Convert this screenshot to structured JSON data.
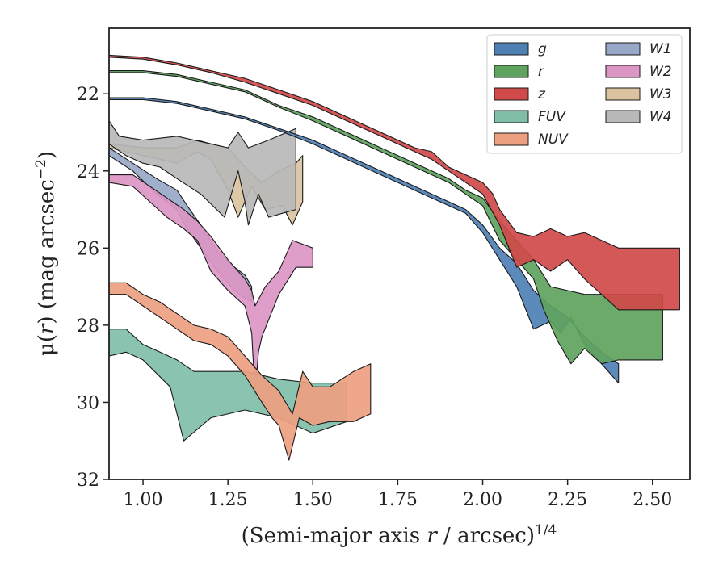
{
  "chart_data": {
    "type": "area",
    "xlabel_parts": [
      "(Semi-major axis ",
      "r",
      " / arcsec)",
      "1/4"
    ],
    "ylabel_parts": [
      "μ(",
      "r",
      ") (mag arcsec",
      "−2",
      ")"
    ],
    "xlim": [
      0.9,
      2.61
    ],
    "ylim": [
      32.0,
      20.3
    ],
    "y_inverted": true,
    "xticks": [
      1.0,
      1.25,
      1.5,
      1.75,
      2.0,
      2.25,
      2.5
    ],
    "xtick_labels": [
      "1.00",
      "1.25",
      "1.50",
      "1.75",
      "2.00",
      "2.25",
      "2.50"
    ],
    "yticks": [
      22,
      24,
      26,
      28,
      30,
      32
    ],
    "ytick_labels": [
      "22",
      "24",
      "26",
      "28",
      "30",
      "32"
    ],
    "legend": {
      "position": "top-right",
      "columns": 2,
      "order": [
        "g",
        "r",
        "z",
        "FUV",
        "NUV",
        "W1",
        "W2",
        "W3",
        "W4"
      ]
    },
    "series": [
      {
        "name": "W3",
        "color": "#dbc39f",
        "upper": [
          [
            0.9,
            23.3
          ],
          [
            1.0,
            23.4
          ],
          [
            1.1,
            23.4
          ],
          [
            1.16,
            23.2
          ],
          [
            1.2,
            23.3
          ],
          [
            1.25,
            23.4
          ],
          [
            1.3,
            23.9
          ],
          [
            1.35,
            24.3
          ],
          [
            1.4,
            24.0
          ],
          [
            1.45,
            23.8
          ],
          [
            1.47,
            23.6
          ]
        ],
        "lower": [
          [
            0.9,
            23.4
          ],
          [
            1.0,
            23.6
          ],
          [
            1.1,
            23.8
          ],
          [
            1.16,
            23.5
          ],
          [
            1.2,
            23.7
          ],
          [
            1.25,
            24.5
          ],
          [
            1.28,
            25.2
          ],
          [
            1.32,
            24.4
          ],
          [
            1.36,
            25.0
          ],
          [
            1.41,
            24.9
          ],
          [
            1.44,
            25.4
          ],
          [
            1.47,
            24.8
          ]
        ]
      },
      {
        "name": "W4",
        "color": "#b9b9b9",
        "upper": [
          [
            0.9,
            22.7
          ],
          [
            0.93,
            23.1
          ],
          [
            1.0,
            23.2
          ],
          [
            1.1,
            23.1
          ],
          [
            1.2,
            23.3
          ],
          [
            1.25,
            23.4
          ],
          [
            1.28,
            23.0
          ],
          [
            1.31,
            23.4
          ],
          [
            1.37,
            23.2
          ],
          [
            1.45,
            22.9
          ]
        ],
        "lower": [
          [
            0.9,
            23.3
          ],
          [
            0.95,
            23.6
          ],
          [
            1.0,
            23.8
          ],
          [
            1.05,
            23.9
          ],
          [
            1.1,
            24.2
          ],
          [
            1.17,
            24.6
          ],
          [
            1.24,
            25.2
          ],
          [
            1.28,
            24.0
          ],
          [
            1.3,
            24.8
          ],
          [
            1.31,
            25.4
          ],
          [
            1.34,
            24.6
          ],
          [
            1.37,
            25.2
          ],
          [
            1.41,
            25.1
          ],
          [
            1.45,
            25.0
          ]
        ]
      },
      {
        "name": "W1",
        "color": "#98a8c8",
        "upper": [
          [
            0.9,
            23.4
          ],
          [
            0.97,
            23.8
          ],
          [
            1.04,
            24.2
          ],
          [
            1.1,
            24.5
          ],
          [
            1.13,
            24.9
          ],
          [
            1.17,
            25.4
          ],
          [
            1.22,
            26.1
          ],
          [
            1.27,
            26.5
          ],
          [
            1.3,
            26.7
          ],
          [
            1.32,
            27.0
          ]
        ],
        "lower": [
          [
            0.9,
            23.6
          ],
          [
            0.97,
            24.0
          ],
          [
            1.04,
            24.6
          ],
          [
            1.1,
            25.0
          ],
          [
            1.13,
            25.5
          ],
          [
            1.17,
            26.0
          ],
          [
            1.22,
            26.6
          ],
          [
            1.27,
            27.1
          ],
          [
            1.3,
            27.3
          ],
          [
            1.32,
            27.4
          ]
        ]
      },
      {
        "name": "W2",
        "color": "#dc96c6",
        "upper": [
          [
            0.9,
            24.1
          ],
          [
            0.97,
            24.1
          ],
          [
            1.02,
            24.4
          ],
          [
            1.07,
            24.7
          ],
          [
            1.12,
            25.0
          ],
          [
            1.16,
            25.3
          ],
          [
            1.2,
            25.7
          ],
          [
            1.25,
            26.3
          ],
          [
            1.3,
            26.8
          ],
          [
            1.32,
            27.1
          ],
          [
            1.33,
            27.5
          ],
          [
            1.36,
            27.0
          ],
          [
            1.4,
            26.6
          ],
          [
            1.44,
            25.8
          ],
          [
            1.5,
            26.0
          ]
        ],
        "lower": [
          [
            0.9,
            24.3
          ],
          [
            0.97,
            24.4
          ],
          [
            1.02,
            24.8
          ],
          [
            1.07,
            25.2
          ],
          [
            1.12,
            25.5
          ],
          [
            1.16,
            25.8
          ],
          [
            1.2,
            26.6
          ],
          [
            1.25,
            27.1
          ],
          [
            1.3,
            27.5
          ],
          [
            1.32,
            28.2
          ],
          [
            1.33,
            29.8
          ],
          [
            1.34,
            28.7
          ],
          [
            1.35,
            28.3
          ],
          [
            1.4,
            27.2
          ],
          [
            1.45,
            26.5
          ],
          [
            1.5,
            26.5
          ]
        ]
      },
      {
        "name": "FUV",
        "color": "#80bea8",
        "upper": [
          [
            0.9,
            28.1
          ],
          [
            0.95,
            28.1
          ],
          [
            1.0,
            28.5
          ],
          [
            1.05,
            28.7
          ],
          [
            1.1,
            28.9
          ],
          [
            1.15,
            29.2
          ],
          [
            1.3,
            29.2
          ],
          [
            1.4,
            29.4
          ],
          [
            1.5,
            29.5
          ],
          [
            1.6,
            29.5
          ]
        ],
        "lower": [
          [
            0.9,
            28.8
          ],
          [
            0.95,
            28.7
          ],
          [
            1.0,
            28.9
          ],
          [
            1.08,
            29.6
          ],
          [
            1.12,
            31.0
          ],
          [
            1.2,
            30.4
          ],
          [
            1.3,
            30.2
          ],
          [
            1.4,
            30.4
          ],
          [
            1.5,
            30.8
          ],
          [
            1.6,
            30.5
          ]
        ]
      },
      {
        "name": "NUV",
        "color": "#eda080",
        "upper": [
          [
            0.9,
            26.9
          ],
          [
            0.95,
            26.9
          ],
          [
            1.0,
            27.2
          ],
          [
            1.05,
            27.4
          ],
          [
            1.1,
            27.7
          ],
          [
            1.15,
            28.0
          ],
          [
            1.2,
            28.1
          ],
          [
            1.25,
            28.3
          ],
          [
            1.3,
            28.8
          ],
          [
            1.35,
            29.3
          ],
          [
            1.4,
            29.7
          ],
          [
            1.44,
            30.3
          ],
          [
            1.47,
            29.2
          ],
          [
            1.5,
            29.6
          ],
          [
            1.55,
            29.6
          ],
          [
            1.62,
            29.2
          ],
          [
            1.67,
            29.0
          ]
        ],
        "lower": [
          [
            0.9,
            27.2
          ],
          [
            0.95,
            27.2
          ],
          [
            1.0,
            27.5
          ],
          [
            1.05,
            27.8
          ],
          [
            1.1,
            28.1
          ],
          [
            1.15,
            28.4
          ],
          [
            1.2,
            28.5
          ],
          [
            1.25,
            28.8
          ],
          [
            1.3,
            29.3
          ],
          [
            1.35,
            30.0
          ],
          [
            1.38,
            30.4
          ],
          [
            1.4,
            30.6
          ],
          [
            1.43,
            31.5
          ],
          [
            1.46,
            30.4
          ],
          [
            1.5,
            30.6
          ],
          [
            1.55,
            30.5
          ],
          [
            1.62,
            30.5
          ],
          [
            1.67,
            30.3
          ]
        ]
      },
      {
        "name": "g",
        "color": "#4e80b4",
        "upper": [
          [
            0.9,
            22.1
          ],
          [
            1.0,
            22.1
          ],
          [
            1.1,
            22.2
          ],
          [
            1.2,
            22.4
          ],
          [
            1.3,
            22.6
          ],
          [
            1.4,
            22.9
          ],
          [
            1.5,
            23.2
          ],
          [
            1.6,
            23.6
          ],
          [
            1.7,
            24.0
          ],
          [
            1.8,
            24.4
          ],
          [
            1.9,
            24.8
          ],
          [
            1.95,
            25.0
          ],
          [
            2.0,
            25.4
          ],
          [
            2.05,
            26.0
          ],
          [
            2.1,
            26.4
          ],
          [
            2.15,
            27.1
          ],
          [
            2.2,
            27.5
          ],
          [
            2.25,
            27.8
          ],
          [
            2.3,
            28.3
          ],
          [
            2.35,
            28.7
          ],
          [
            2.4,
            29.0
          ]
        ],
        "lower": [
          [
            0.9,
            22.15
          ],
          [
            1.0,
            22.15
          ],
          [
            1.1,
            22.25
          ],
          [
            1.2,
            22.45
          ],
          [
            1.3,
            22.65
          ],
          [
            1.4,
            22.95
          ],
          [
            1.5,
            23.3
          ],
          [
            1.6,
            23.7
          ],
          [
            1.7,
            24.1
          ],
          [
            1.8,
            24.5
          ],
          [
            1.9,
            24.9
          ],
          [
            1.95,
            25.1
          ],
          [
            2.0,
            25.6
          ],
          [
            2.05,
            26.3
          ],
          [
            2.1,
            27.0
          ],
          [
            2.15,
            28.1
          ],
          [
            2.2,
            27.9
          ],
          [
            2.23,
            28.2
          ],
          [
            2.26,
            27.8
          ],
          [
            2.3,
            28.5
          ],
          [
            2.35,
            29.0
          ],
          [
            2.4,
            29.5
          ]
        ]
      },
      {
        "name": "r",
        "color": "#5fa35f",
        "upper": [
          [
            0.9,
            21.4
          ],
          [
            1.0,
            21.4
          ],
          [
            1.1,
            21.5
          ],
          [
            1.2,
            21.7
          ],
          [
            1.3,
            21.9
          ],
          [
            1.4,
            22.3
          ],
          [
            1.5,
            22.6
          ],
          [
            1.6,
            23.0
          ],
          [
            1.7,
            23.4
          ],
          [
            1.8,
            23.8
          ],
          [
            1.9,
            24.2
          ],
          [
            1.95,
            24.5
          ],
          [
            2.0,
            24.7
          ],
          [
            2.05,
            25.3
          ],
          [
            2.1,
            25.8
          ],
          [
            2.15,
            26.3
          ],
          [
            2.2,
            27.0
          ],
          [
            2.3,
            27.2
          ],
          [
            2.4,
            27.2
          ],
          [
            2.53,
            27.2
          ]
        ],
        "lower": [
          [
            0.9,
            21.45
          ],
          [
            1.0,
            21.45
          ],
          [
            1.1,
            21.55
          ],
          [
            1.2,
            21.75
          ],
          [
            1.3,
            21.95
          ],
          [
            1.4,
            22.35
          ],
          [
            1.5,
            22.7
          ],
          [
            1.6,
            23.1
          ],
          [
            1.7,
            23.5
          ],
          [
            1.8,
            23.9
          ],
          [
            1.9,
            24.3
          ],
          [
            1.95,
            24.6
          ],
          [
            2.0,
            24.9
          ],
          [
            2.05,
            25.8
          ],
          [
            2.1,
            26.3
          ],
          [
            2.15,
            26.8
          ],
          [
            2.18,
            27.6
          ],
          [
            2.22,
            28.4
          ],
          [
            2.26,
            29.0
          ],
          [
            2.3,
            28.6
          ],
          [
            2.35,
            29.0
          ],
          [
            2.4,
            28.9
          ],
          [
            2.53,
            28.9
          ]
        ]
      },
      {
        "name": "z",
        "color": "#d14a4a",
        "upper": [
          [
            0.9,
            21.0
          ],
          [
            1.0,
            21.05
          ],
          [
            1.1,
            21.2
          ],
          [
            1.2,
            21.4
          ],
          [
            1.3,
            21.6
          ],
          [
            1.4,
            21.9
          ],
          [
            1.5,
            22.2
          ],
          [
            1.6,
            22.6
          ],
          [
            1.7,
            23.0
          ],
          [
            1.8,
            23.4
          ],
          [
            1.85,
            23.5
          ],
          [
            1.9,
            23.9
          ],
          [
            1.95,
            24.1
          ],
          [
            2.0,
            24.3
          ],
          [
            2.03,
            24.6
          ],
          [
            2.05,
            25.0
          ],
          [
            2.1,
            25.6
          ],
          [
            2.15,
            25.7
          ],
          [
            2.2,
            25.5
          ],
          [
            2.25,
            25.7
          ],
          [
            2.3,
            25.6
          ],
          [
            2.4,
            26.0
          ],
          [
            2.5,
            26.0
          ],
          [
            2.58,
            26.0
          ]
        ],
        "lower": [
          [
            0.9,
            21.05
          ],
          [
            1.0,
            21.1
          ],
          [
            1.1,
            21.25
          ],
          [
            1.2,
            21.45
          ],
          [
            1.3,
            21.7
          ],
          [
            1.4,
            22.0
          ],
          [
            1.5,
            22.3
          ],
          [
            1.6,
            22.7
          ],
          [
            1.7,
            23.1
          ],
          [
            1.8,
            23.5
          ],
          [
            1.85,
            23.7
          ],
          [
            1.9,
            24.0
          ],
          [
            1.95,
            24.3
          ],
          [
            2.0,
            24.6
          ],
          [
            2.05,
            25.4
          ],
          [
            2.1,
            26.5
          ],
          [
            2.15,
            26.3
          ],
          [
            2.2,
            26.6
          ],
          [
            2.25,
            26.3
          ],
          [
            2.3,
            26.8
          ],
          [
            2.4,
            27.6
          ],
          [
            2.5,
            27.6
          ],
          [
            2.58,
            27.6
          ]
        ]
      }
    ]
  }
}
